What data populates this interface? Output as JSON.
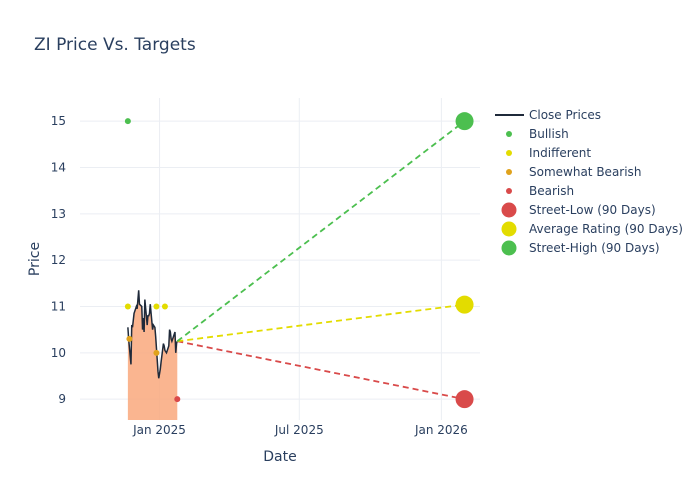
{
  "chart_data": {
    "type": "line",
    "title": "ZI Price Vs. Targets",
    "xlabel": "Date",
    "ylabel": "Price",
    "xlim": [
      "2024-09-20",
      "2026-02-20"
    ],
    "ylim": [
      8.55,
      15.5
    ],
    "x_ticks": [
      {
        "date": "2025-01-01",
        "label": "Jan 2025"
      },
      {
        "date": "2025-07-01",
        "label": "Jul 2025"
      },
      {
        "date": "2026-01-01",
        "label": "Jan 2026"
      }
    ],
    "y_ticks": [
      9,
      10,
      11,
      12,
      13,
      14,
      15
    ],
    "grid": true,
    "legend_position": "right",
    "close_prices": {
      "name": "Close Prices",
      "color": "#1f2a3a",
      "fill_color": "#f9a87d",
      "points": [
        [
          "2024-11-21",
          10.55
        ],
        [
          "2024-11-22",
          10.3
        ],
        [
          "2024-11-25",
          9.75
        ],
        [
          "2024-11-26",
          10.6
        ],
        [
          "2024-11-27",
          10.55
        ],
        [
          "2024-11-29",
          10.85
        ],
        [
          "2024-12-02",
          11.0
        ],
        [
          "2024-12-03",
          10.95
        ],
        [
          "2024-12-04",
          11.15
        ],
        [
          "2024-12-05",
          11.35
        ],
        [
          "2024-12-06",
          11.05
        ],
        [
          "2024-12-09",
          11.0
        ],
        [
          "2024-12-10",
          10.5
        ],
        [
          "2024-12-11",
          10.75
        ],
        [
          "2024-12-12",
          10.45
        ],
        [
          "2024-12-13",
          11.15
        ],
        [
          "2024-12-16",
          10.6
        ],
        [
          "2024-12-17",
          10.8
        ],
        [
          "2024-12-18",
          10.8
        ],
        [
          "2024-12-19",
          10.85
        ],
        [
          "2024-12-20",
          11.05
        ],
        [
          "2024-12-23",
          10.5
        ],
        [
          "2024-12-24",
          10.6
        ],
        [
          "2024-12-26",
          10.55
        ],
        [
          "2024-12-27",
          10.35
        ],
        [
          "2024-12-30",
          9.6
        ],
        [
          "2024-12-31",
          9.45
        ],
        [
          "2025-01-02",
          9.65
        ],
        [
          "2025-01-03",
          9.8
        ],
        [
          "2025-01-06",
          10.2
        ],
        [
          "2025-01-07",
          10.15
        ],
        [
          "2025-01-08",
          10.05
        ],
        [
          "2025-01-10",
          10.0
        ],
        [
          "2025-01-13",
          10.15
        ],
        [
          "2025-01-14",
          10.5
        ],
        [
          "2025-01-15",
          10.45
        ],
        [
          "2025-01-16",
          10.3
        ],
        [
          "2025-01-17",
          10.25
        ],
        [
          "2025-01-21",
          10.45
        ],
        [
          "2025-01-22",
          10.0
        ],
        [
          "2025-01-23",
          10.2
        ],
        [
          "2025-01-24",
          10.25
        ]
      ]
    },
    "ratings": [
      {
        "name": "Bullish",
        "color": "#4cbf4f",
        "points": [
          [
            "2024-11-21",
            15.0
          ]
        ]
      },
      {
        "name": "Indifferent",
        "color": "#e3dc00",
        "points": [
          [
            "2024-11-21",
            11.0
          ],
          [
            "2024-12-28",
            11.0
          ],
          [
            "2025-01-08",
            11.0
          ]
        ]
      },
      {
        "name": "Somewhat Bearish",
        "color": "#e0a21c",
        "points": [
          [
            "2024-11-23",
            10.3
          ],
          [
            "2024-12-28",
            10.0
          ]
        ]
      },
      {
        "name": "Bearish",
        "color": "#d94a4a",
        "points": [
          [
            "2025-01-24",
            9.0
          ]
        ]
      }
    ],
    "targets": [
      {
        "name": "Street-Low (90 Days)",
        "color": "#d94a4a",
        "value": 9.0,
        "date": "2026-01-31"
      },
      {
        "name": "Average Rating (90 Days)",
        "color": "#e3dc00",
        "value": 11.04,
        "date": "2026-01-31"
      },
      {
        "name": "Street-High (90 Days)",
        "color": "#4cbf4f",
        "value": 15.0,
        "date": "2026-01-31"
      }
    ]
  }
}
